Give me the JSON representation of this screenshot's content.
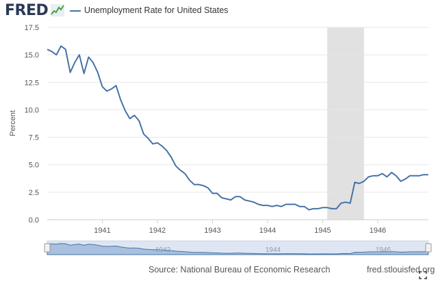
{
  "header": {
    "logo_text": "FRED",
    "logo_icon": "chart-line-icon",
    "legend_label": "Unemployment Rate for United States"
  },
  "footer": {
    "source": "Source: National Bureau of Economic Research",
    "url": "fred.stlouisfed.org",
    "expand_icon": "expand-icon"
  },
  "colors": {
    "series": "#4572a7",
    "recession": "#e1e1e1",
    "grid": "#e6e6e6",
    "navigator_fill": "#a9c0de"
  },
  "chart_data": {
    "type": "line",
    "title": "Unemployment Rate for United States",
    "ylabel": "Percent",
    "xlabel": "",
    "ylim": [
      0,
      17.5
    ],
    "y_ticks": [
      "0.0",
      "2.5",
      "5.0",
      "7.5",
      "10.0",
      "12.5",
      "15.0",
      "17.5"
    ],
    "x_range": [
      1940.0,
      1946.92
    ],
    "x_ticks": [
      {
        "value": 1941.0,
        "label": "1941"
      },
      {
        "value": 1942.0,
        "label": "1942"
      },
      {
        "value": 1943.0,
        "label": "1943"
      },
      {
        "value": 1944.0,
        "label": "1944"
      },
      {
        "value": 1945.0,
        "label": "1945"
      },
      {
        "value": 1946.0,
        "label": "1946"
      }
    ],
    "recessions": [
      {
        "start": 1945.083,
        "end": 1945.75
      }
    ],
    "navigator_ticks": [
      "1942",
      "1944",
      "1946"
    ],
    "series": [
      {
        "name": "Unemployment Rate for United States",
        "x": [
          1940.0,
          1940.083,
          1940.167,
          1940.25,
          1940.333,
          1940.417,
          1940.5,
          1940.583,
          1940.667,
          1940.75,
          1940.833,
          1940.917,
          1941.0,
          1941.083,
          1941.167,
          1941.25,
          1941.333,
          1941.417,
          1941.5,
          1941.583,
          1941.667,
          1941.75,
          1941.833,
          1941.917,
          1942.0,
          1942.083,
          1942.167,
          1942.25,
          1942.333,
          1942.417,
          1942.5,
          1942.583,
          1942.667,
          1942.75,
          1942.833,
          1942.917,
          1943.0,
          1943.083,
          1943.167,
          1943.25,
          1943.333,
          1943.417,
          1943.5,
          1943.583,
          1943.667,
          1943.75,
          1943.833,
          1943.917,
          1944.0,
          1944.083,
          1944.167,
          1944.25,
          1944.333,
          1944.417,
          1944.5,
          1944.583,
          1944.667,
          1944.75,
          1944.833,
          1944.917,
          1945.0,
          1945.083,
          1945.167,
          1945.25,
          1945.333,
          1945.417,
          1945.5,
          1945.583,
          1945.667,
          1945.75,
          1945.833,
          1945.917,
          1946.0,
          1946.083,
          1946.167,
          1946.25,
          1946.333,
          1946.417,
          1946.5,
          1946.583,
          1946.667,
          1946.75,
          1946.833,
          1946.917
        ],
        "values": [
          15.5,
          15.3,
          15.0,
          15.8,
          15.5,
          13.4,
          14.3,
          15.0,
          13.3,
          14.8,
          14.3,
          13.4,
          12.1,
          11.7,
          11.9,
          12.2,
          10.9,
          9.9,
          9.2,
          9.5,
          9.0,
          7.8,
          7.4,
          6.9,
          7.0,
          6.7,
          6.3,
          5.7,
          4.9,
          4.5,
          4.2,
          3.6,
          3.2,
          3.2,
          3.1,
          2.9,
          2.4,
          2.4,
          2.0,
          1.9,
          1.8,
          2.1,
          2.1,
          1.8,
          1.7,
          1.6,
          1.4,
          1.3,
          1.3,
          1.2,
          1.3,
          1.2,
          1.4,
          1.4,
          1.4,
          1.2,
          1.2,
          0.9,
          1.0,
          1.0,
          1.1,
          1.1,
          1.0,
          1.0,
          1.5,
          1.6,
          1.5,
          3.4,
          3.3,
          3.5,
          3.9,
          4.0,
          4.0,
          4.2,
          3.9,
          4.3,
          4.0,
          3.5,
          3.7,
          4.0,
          4.0,
          4.0,
          4.1,
          4.1
        ]
      }
    ]
  }
}
